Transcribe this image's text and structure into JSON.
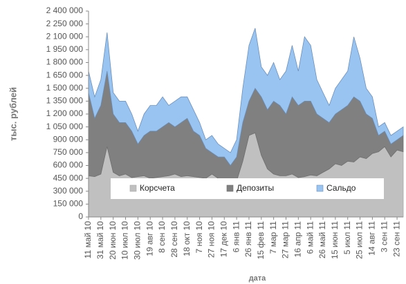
{
  "chart_data": {
    "type": "stacked_area",
    "y_label": "тыс. рублей",
    "x_label": "дата",
    "categories": [
      "11 май 10",
      null,
      "31 май 10",
      null,
      "20 июн 10",
      null,
      "10 июл 10",
      null,
      "30 июл 10",
      null,
      "19 авг 10",
      null,
      "8 сен 10",
      null,
      "28 сен 10",
      null,
      "18 окт 10",
      null,
      "7 ноя 10",
      null,
      "27 ноя 10",
      null,
      "17 дек 10",
      null,
      "6 янв 11",
      null,
      "26 янв 11",
      null,
      "15 фев 11",
      null,
      "7 мар 11",
      null,
      "27 мар 11",
      null,
      "16 апр 11",
      null,
      "6 май 11",
      null,
      "26 май 11",
      null,
      "15 июн 11",
      null,
      "5 июл 11",
      null,
      "25 июл 11",
      null,
      "14 авг 11",
      null,
      "3 сен 11",
      null,
      "23 сен 11",
      null
    ],
    "series": [
      {
        "name": "Корсчета",
        "color": "#c0c0c0",
        "stroke": "#a6a6a6",
        "values": [
          480000,
          470000,
          500000,
          820000,
          520000,
          480000,
          500000,
          460000,
          470000,
          480000,
          450000,
          460000,
          470000,
          480000,
          500000,
          470000,
          480000,
          470000,
          460000,
          450000,
          500000,
          450000,
          420000,
          400000,
          420000,
          650000,
          950000,
          980000,
          720000,
          560000,
          500000,
          480000,
          480000,
          500000,
          460000,
          470000,
          490000,
          480000,
          520000,
          560000,
          620000,
          600000,
          650000,
          640000,
          700000,
          680000,
          740000,
          760000,
          820000,
          700000,
          780000,
          760000
        ]
      },
      {
        "name": "Депозиты",
        "color": "#808080",
        "stroke": "#6e6e6e",
        "values": [
          970000,
          680000,
          800000,
          880000,
          680000,
          620000,
          600000,
          540000,
          380000,
          470000,
          550000,
          540000,
          580000,
          620000,
          550000,
          630000,
          670000,
          530000,
          490000,
          350000,
          250000,
          250000,
          280000,
          200000,
          280000,
          450000,
          400000,
          520000,
          680000,
          690000,
          850000,
          820000,
          720000,
          900000,
          840000,
          880000,
          860000,
          720000,
          630000,
          540000,
          580000,
          650000,
          650000,
          760000,
          650000,
          520000,
          410000,
          190000,
          180000,
          150000,
          120000,
          190000
        ]
      },
      {
        "name": "Сальдо",
        "color": "#99c4f2",
        "stroke": "#6b8fb8",
        "values": [
          250000,
          250000,
          300000,
          450000,
          250000,
          250000,
          250000,
          200000,
          150000,
          250000,
          300000,
          300000,
          350000,
          200000,
          300000,
          300000,
          250000,
          250000,
          150000,
          100000,
          200000,
          150000,
          100000,
          150000,
          200000,
          400000,
          650000,
          700000,
          350000,
          400000,
          450000,
          300000,
          500000,
          600000,
          400000,
          750000,
          650000,
          400000,
          300000,
          200000,
          300000,
          350000,
          400000,
          700000,
          500000,
          300000,
          250000,
          100000,
          100000,
          100000,
          100000,
          100000
        ]
      }
    ],
    "ylim": [
      0,
      2400000
    ],
    "yticks": [
      0,
      {
        "value": 150000,
        "label": "150 000"
      },
      {
        "value": 300000,
        "label": "300 000"
      },
      {
        "value": 450000,
        "label": "450 000"
      },
      {
        "value": 600000,
        "label": "600 000"
      },
      {
        "value": 750000,
        "label": "750 000"
      },
      {
        "value": 900000,
        "label": "900 000"
      },
      {
        "value": 1050000,
        "label": "1 050 000"
      },
      {
        "value": 1200000,
        "label": "1 200 000"
      },
      {
        "value": 1350000,
        "label": "1 350 000"
      },
      {
        "value": 1500000,
        "label": "1 500 000"
      },
      {
        "value": 1650000,
        "label": "1 650 000"
      },
      {
        "value": 1800000,
        "label": "1 800 000"
      },
      {
        "value": 1950000,
        "label": "1 950 000"
      },
      {
        "value": 2100000,
        "label": "2 100 000"
      },
      {
        "value": 2250000,
        "label": "2 250 000"
      },
      {
        "value": 2400000,
        "label": "2 400 000"
      }
    ],
    "grid": false,
    "legend": "bottom"
  }
}
